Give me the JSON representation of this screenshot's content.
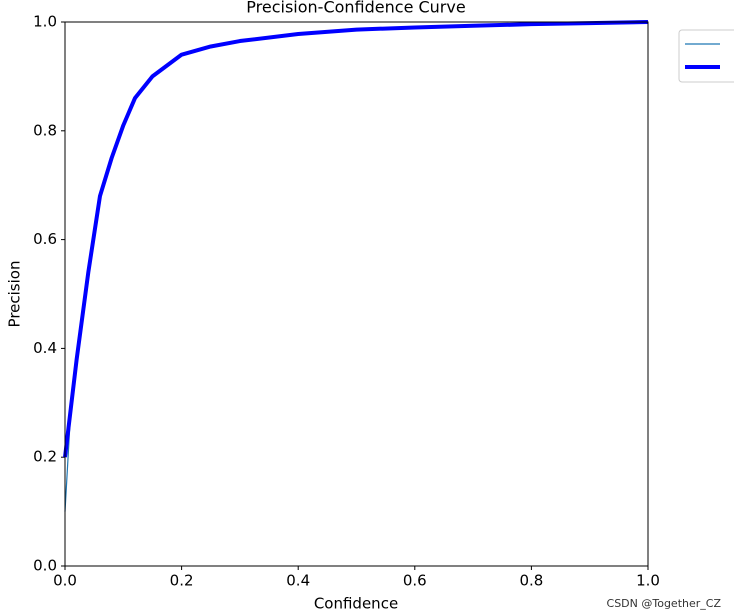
{
  "chart_data": {
    "type": "line",
    "title": "Precision-Confidence Curve",
    "x_label": "Confidence",
    "y_label": "Precision",
    "x": [
      0,
      0.01,
      0.02,
      0.04,
      0.06,
      0.08,
      0.1,
      0.12,
      0.15,
      0.2,
      0.25,
      0.3,
      0.4,
      0.5,
      0.6,
      0.7,
      0.8,
      0.9,
      1.0
    ],
    "series": [
      {
        "color": "#1f77b4",
        "width": 1.2,
        "values": [
          0.1,
          0.29,
          0.38,
          0.54,
          0.68,
          0.75,
          0.81,
          0.86,
          0.9,
          0.94,
          0.955,
          0.965,
          0.978,
          0.986,
          0.99,
          0.993,
          0.996,
          0.998,
          1.0
        ]
      },
      {
        "color": "#0000ff",
        "width": 4,
        "values": [
          0.2,
          0.29,
          0.38,
          0.54,
          0.68,
          0.75,
          0.81,
          0.86,
          0.9,
          0.94,
          0.955,
          0.965,
          0.978,
          0.986,
          0.99,
          0.993,
          0.996,
          0.998,
          1.0
        ]
      }
    ],
    "xlim": [
      0,
      1
    ],
    "ylim": [
      0,
      1
    ],
    "xticks": [
      {
        "value": 0,
        "label": "0.0"
      },
      0.2,
      0.4,
      0.6,
      0.8,
      {
        "value": 1,
        "label": "1.0"
      }
    ],
    "yticks": [
      {
        "value": 0,
        "label": "0.0"
      },
      0.2,
      0.4,
      0.6,
      0.8,
      {
        "value": 1,
        "label": "1.0"
      }
    ],
    "legend": "upper-right-outside",
    "watermark": "CSDN @Together_CZ"
  }
}
